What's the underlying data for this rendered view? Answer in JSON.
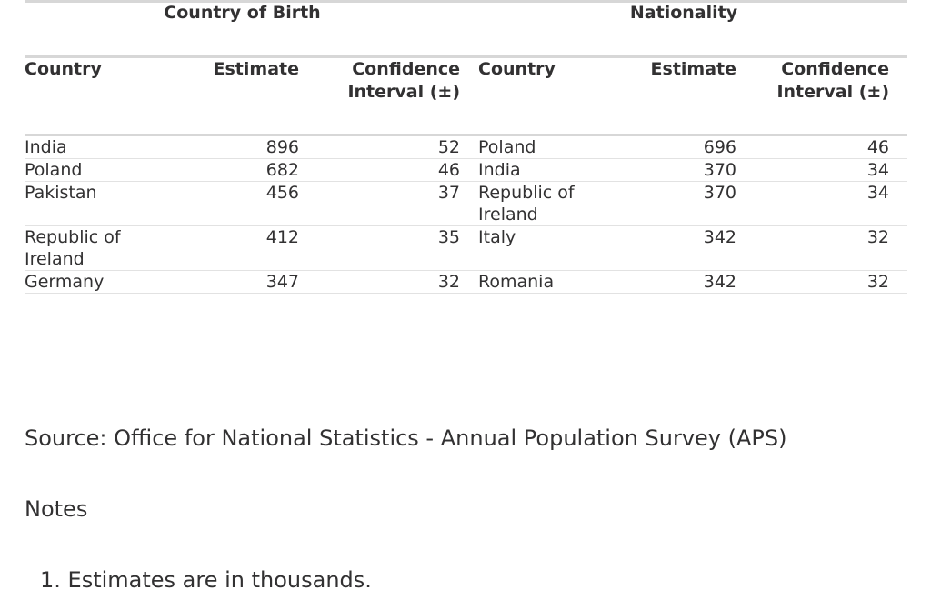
{
  "table": {
    "groups": [
      "Country of Birth",
      "Nationality"
    ],
    "headers": {
      "country": "Country",
      "estimate": "Estimate",
      "ci_line1": "Confidence",
      "ci_line2": "Interval (±)"
    },
    "rows": [
      {
        "cob_country": "India",
        "cob_estimate": "896",
        "cob_ci": "52",
        "nat_country": "Poland",
        "nat_estimate": "696",
        "nat_ci": "46"
      },
      {
        "cob_country": "Poland",
        "cob_estimate": "682",
        "cob_ci": "46",
        "nat_country": "India",
        "nat_estimate": "370",
        "nat_ci": "34"
      },
      {
        "cob_country": "Pakistan",
        "cob_estimate": "456",
        "cob_ci": "37",
        "nat_country": "Republic of Ireland",
        "nat_estimate": "370",
        "nat_ci": "34"
      },
      {
        "cob_country": "Republic of Ireland",
        "cob_estimate": "412",
        "cob_ci": "35",
        "nat_country": "Italy",
        "nat_estimate": "342",
        "nat_ci": "32"
      },
      {
        "cob_country": "Germany",
        "cob_estimate": "347",
        "cob_ci": "32",
        "nat_country": "Romania",
        "nat_estimate": "342",
        "nat_ci": "32"
      }
    ]
  },
  "source": "Source: Office for National Statistics - Annual Population Survey (APS)",
  "notes": {
    "title": "Notes",
    "items": [
      "1. Estimates are in thousands."
    ]
  }
}
